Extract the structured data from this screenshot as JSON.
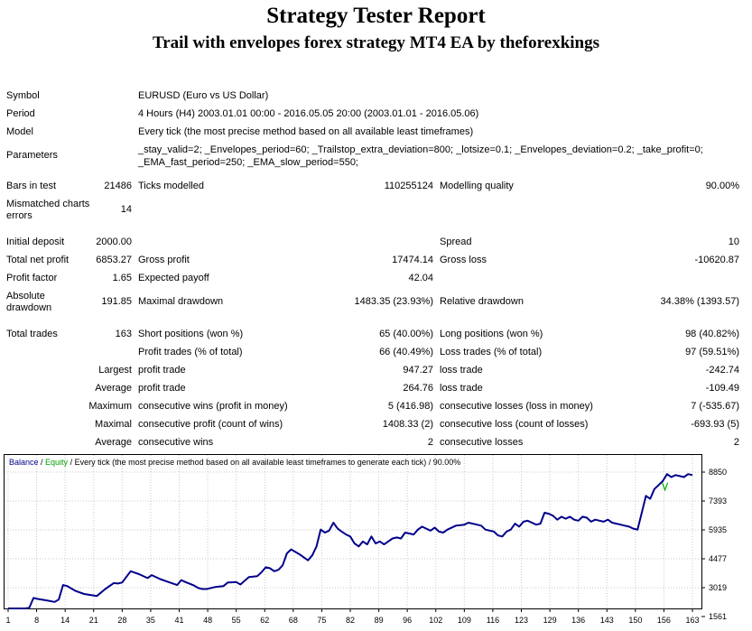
{
  "title": "Strategy Tester Report",
  "subtitle": "Trail with envelopes forex strategy MT4 EA by theforexkings",
  "info": {
    "symbol_label": "Symbol",
    "symbol_value": "EURUSD (Euro vs US Dollar)",
    "period_label": "Period",
    "period_value": "4 Hours (H4) 2003.01.01 00:00 - 2016.05.05 20:00 (2003.01.01 - 2016.05.06)",
    "model_label": "Model",
    "model_value": "Every tick (the most precise method based on all available least timeframes)",
    "parameters_label": "Parameters",
    "parameters_line1": "_stay_valid=2; _Envelopes_period=60; _Trailstop_extra_deviation=800; _lotsize=0.1; _Envelopes_deviation=0.2; _take_profit=0;",
    "parameters_line2": "_EMA_fast_period=250; _EMA_slow_period=550;"
  },
  "stats": {
    "bars_label": "Bars in test",
    "bars_value": "21486",
    "ticks_label": "Ticks modelled",
    "ticks_value": "110255124",
    "quality_label": "Modelling quality",
    "quality_value": "90.00%",
    "mismatch_label_1": "Mismatched charts",
    "mismatch_label_2": "errors",
    "mismatch_value": "14",
    "deposit_label": "Initial deposit",
    "deposit_value": "2000.00",
    "spread_label": "Spread",
    "spread_value": "10",
    "net_label": "Total net profit",
    "net_value": "6853.27",
    "gross_profit_label": "Gross profit",
    "gross_profit_value": "17474.14",
    "gross_loss_label": "Gross loss",
    "gross_loss_value": "-10620.87",
    "pf_label": "Profit factor",
    "pf_value": "1.65",
    "payoff_label": "Expected payoff",
    "payoff_value": "42.04",
    "absdd_label_1": "Absolute",
    "absdd_label_2": "drawdown",
    "absdd_value": "191.85",
    "maxdd_label": "Maximal drawdown",
    "maxdd_value": "1483.35 (23.93%)",
    "reldd_label": "Relative drawdown",
    "reldd_value": "34.38% (1393.57)",
    "trades_label": "Total trades",
    "trades_value": "163",
    "short_label": "Short positions (won %)",
    "short_value": "65 (40.00%)",
    "long_label": "Long positions (won %)",
    "long_value": "98 (40.82%)",
    "ptrades_label": "Profit trades (% of total)",
    "ptrades_value": "66 (40.49%)",
    "ltrades_label": "Loss trades (% of total)",
    "ltrades_value": "97 (59.51%)",
    "largest": "Largest",
    "average": "Average",
    "maximum": "Maximum",
    "maximal": "Maximal",
    "average2": "Average",
    "lpt_label": "profit trade",
    "lpt_value": "947.27",
    "llt_label": "loss trade",
    "llt_value": "-242.74",
    "apt_label": "profit trade",
    "apt_value": "264.76",
    "alt_label": "loss trade",
    "alt_value": "-109.49",
    "mcw_label": "consecutive wins (profit in money)",
    "mcw_value": "5 (416.98)",
    "mcl_label": "consecutive losses (loss in money)",
    "mcl_value": "7 (-535.67)",
    "mcp_label": "consecutive profit (count of wins)",
    "mcp_value": "1408.33 (2)",
    "mcloss_label": "consecutive loss (count of losses)",
    "mcloss_value": "-693.93 (5)",
    "acw_label": "consecutive wins",
    "acw_value": "2",
    "acl_label": "consecutive losses",
    "acl_value": "2"
  },
  "chart_data": {
    "type": "line",
    "legend_balance": "Balance",
    "legend_sep": " / ",
    "legend_equity": "Equity",
    "legend_rest": " / Every tick (the most precise method based on all available least timeframes to generate each tick) / 90.00%",
    "x_ticks": [
      "1",
      "8",
      "14",
      "21",
      "28",
      "35",
      "41",
      "48",
      "55",
      "62",
      "68",
      "75",
      "82",
      "89",
      "96",
      "102",
      "109",
      "116",
      "123",
      "129",
      "136",
      "143",
      "150",
      "156",
      "163"
    ],
    "y_ticks": [
      "8850",
      "7393",
      "5935",
      "4477",
      "3019",
      "1561"
    ],
    "xlim": [
      1,
      163
    ],
    "ylim": [
      1561,
      8850
    ],
    "grid": true,
    "series": [
      {
        "name": "Balance",
        "color": "#00008b",
        "x": [
          1,
          3,
          5,
          6,
          7,
          8,
          10,
          12,
          13,
          14,
          15,
          17,
          19,
          21,
          22,
          24,
          26,
          27,
          28,
          30,
          32,
          34,
          35,
          37,
          39,
          41,
          42,
          43,
          45,
          46,
          47,
          48,
          50,
          52,
          53,
          55,
          56,
          58,
          60,
          61,
          62,
          63,
          64,
          65,
          66,
          67,
          68,
          70,
          71,
          72,
          73,
          74,
          75,
          76,
          77,
          78,
          79,
          80,
          81,
          82,
          83,
          84,
          85,
          86,
          87,
          88,
          89,
          90,
          92,
          93,
          94,
          95,
          96,
          97,
          98,
          99,
          100,
          101,
          102,
          103,
          104,
          105,
          107,
          109,
          110,
          111,
          112,
          113,
          114,
          116,
          117,
          118,
          119,
          120,
          121,
          122,
          123,
          124,
          125,
          126,
          127,
          128,
          129,
          130,
          131,
          132,
          133,
          134,
          135,
          136,
          137,
          138,
          139,
          140,
          141,
          142,
          143,
          144,
          145,
          146,
          147,
          148,
          149,
          150,
          151,
          152,
          153,
          154,
          155,
          156,
          157,
          158,
          159,
          160,
          161,
          162,
          163
        ],
        "values": [
          1850,
          1900,
          1880,
          2000,
          2500,
          2450,
          2380,
          2300,
          2420,
          3150,
          3100,
          2850,
          2700,
          2630,
          2600,
          2950,
          3250,
          3230,
          3280,
          3850,
          3700,
          3500,
          3650,
          3450,
          3300,
          3150,
          3400,
          3300,
          3130,
          3000,
          2950,
          2950,
          3050,
          3100,
          3280,
          3300,
          3180,
          3550,
          3600,
          3800,
          4050,
          4000,
          3850,
          3920,
          4150,
          4750,
          4950,
          4700,
          4550,
          4400,
          4650,
          5100,
          5950,
          5800,
          5900,
          6300,
          6000,
          5850,
          5700,
          5600,
          5250,
          5100,
          5350,
          5200,
          5600,
          5250,
          5350,
          5200,
          5500,
          5550,
          5500,
          5800,
          5750,
          5700,
          5950,
          6100,
          6000,
          5900,
          6050,
          5850,
          5800,
          5950,
          6150,
          6200,
          6300,
          6250,
          6200,
          6150,
          5950,
          5850,
          5650,
          5600,
          5850,
          5950,
          6250,
          6100,
          6350,
          6400,
          6300,
          6200,
          6250,
          6800,
          6750,
          6650,
          6450,
          6600,
          6500,
          6600,
          6450,
          6400,
          6600,
          6550,
          6350,
          6450,
          6400,
          6350,
          6450,
          6300,
          6250,
          6200,
          6150,
          6100,
          6000,
          5950,
          6800,
          7650,
          7500,
          8000,
          8200,
          8400,
          8750,
          8600,
          8700,
          8650,
          8600,
          8750,
          8700
        ]
      }
    ],
    "equity_marker": {
      "x": 156.5,
      "value": 7950,
      "color": "#00b000"
    }
  }
}
